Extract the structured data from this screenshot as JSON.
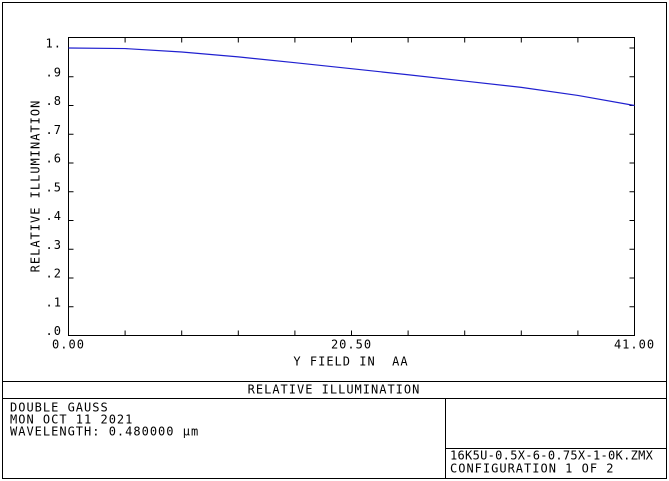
{
  "chart_data": {
    "type": "line",
    "y_label": "RELATIVE ILLUMINATION",
    "x_label": "Y FIELD IN  AA",
    "x": [
      0,
      4.1,
      8.2,
      12.3,
      16.4,
      20.5,
      24.6,
      28.7,
      32.8,
      36.9,
      41
    ],
    "values": [
      1.0,
      0.998,
      0.986,
      0.969,
      0.949,
      0.928,
      0.907,
      0.885,
      0.863,
      0.835,
      0.8
    ],
    "color": "#2020d0",
    "xlim": [
      0,
      41
    ],
    "ylim": [
      0,
      1
    ],
    "xticks": [
      {
        "value": 0,
        "label": "0.00"
      },
      {
        "value": 20.5,
        "label": "20.50"
      },
      {
        "value": 41,
        "label": "41.00"
      }
    ],
    "yticks": [
      {
        "value": 0,
        "label": ".0"
      },
      {
        "value": 0.1,
        "label": ".1"
      },
      {
        "value": 0.2,
        "label": ".2"
      },
      {
        "value": 0.3,
        "label": ".3"
      },
      {
        "value": 0.4,
        "label": ".4"
      },
      {
        "value": 0.5,
        "label": ".5"
      },
      {
        "value": 0.6,
        "label": ".6"
      },
      {
        "value": 0.7,
        "label": ".7"
      },
      {
        "value": 0.8,
        "label": ".8"
      },
      {
        "value": 0.9,
        "label": ".9"
      },
      {
        "value": 1,
        "label": "1."
      }
    ]
  },
  "footer": {
    "title": "RELATIVE ILLUMINATION",
    "lines": [
      "DOUBLE GAUSS",
      "MON OCT 11 2021",
      "WAVELENGTH: 0.480000 µm"
    ],
    "file": "16K5U-0.5X-6-0.75X-1-0K.ZMX",
    "config": "CONFIGURATION 1 OF 2"
  }
}
